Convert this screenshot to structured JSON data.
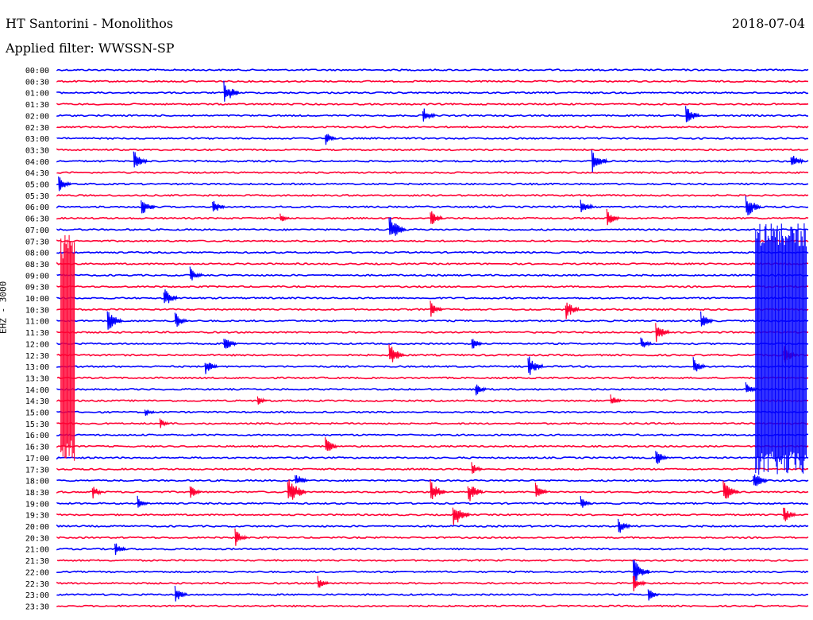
{
  "header": {
    "title": "HT Santorini - Monolithos",
    "date": "2018-07-04",
    "filter": "Applied filter: WWSSN-SP"
  },
  "chart_data": {
    "type": "line",
    "title": "HT Santorini - Monolithos",
    "ylabel": "EHZ - 3000",
    "colors": [
      "#0000ff",
      "#ff0033"
    ],
    "rows": [
      "00:00",
      "00:30",
      "01:00",
      "01:30",
      "02:00",
      "02:30",
      "03:00",
      "03:30",
      "04:00",
      "04:30",
      "05:00",
      "05:30",
      "06:00",
      "06:30",
      "07:00",
      "07:30",
      "08:00",
      "08:30",
      "09:00",
      "09:30",
      "10:00",
      "10:30",
      "11:00",
      "11:30",
      "12:00",
      "12:30",
      "13:00",
      "13:30",
      "14:00",
      "14:30",
      "15:00",
      "15:30",
      "16:00",
      "16:30",
      "17:00",
      "17:30",
      "18:00",
      "18:30",
      "19:00",
      "19:30",
      "20:00",
      "20:30",
      "21:00",
      "21:30",
      "22:00",
      "22:30",
      "23:00",
      "23:30"
    ],
    "bursts": [
      {
        "row": "07:30",
        "x_frac": 0.005,
        "to_row": "17:00",
        "color": "#ff0033"
      },
      {
        "row": "07:00",
        "x_frac": 0.93,
        "to_row": "17:30",
        "color": "#0000ff"
      }
    ],
    "events": [
      {
        "row": "01:00",
        "x": 0.225,
        "a": 14
      },
      {
        "row": "02:00",
        "x": 0.49,
        "a": 10
      },
      {
        "row": "02:00",
        "x": 0.84,
        "a": 12
      },
      {
        "row": "03:00",
        "x": 0.36,
        "a": 8
      },
      {
        "row": "04:00",
        "x": 0.105,
        "a": 12
      },
      {
        "row": "04:00",
        "x": 0.715,
        "a": 14
      },
      {
        "row": "04:00",
        "x": 0.98,
        "a": 10
      },
      {
        "row": "05:00",
        "x": 0.005,
        "a": 10
      },
      {
        "row": "06:00",
        "x": 0.115,
        "a": 12
      },
      {
        "row": "06:00",
        "x": 0.21,
        "a": 10
      },
      {
        "row": "06:00",
        "x": 0.7,
        "a": 10
      },
      {
        "row": "06:00",
        "x": 0.92,
        "a": 14
      },
      {
        "row": "06:30",
        "x": 0.3,
        "a": 6
      },
      {
        "row": "06:30",
        "x": 0.5,
        "a": 10
      },
      {
        "row": "06:30",
        "x": 0.735,
        "a": 10
      },
      {
        "row": "07:00",
        "x": 0.445,
        "a": 16
      },
      {
        "row": "09:00",
        "x": 0.18,
        "a": 10
      },
      {
        "row": "10:00",
        "x": 0.145,
        "a": 12
      },
      {
        "row": "10:30",
        "x": 0.5,
        "a": 10
      },
      {
        "row": "10:30",
        "x": 0.68,
        "a": 12
      },
      {
        "row": "11:00",
        "x": 0.07,
        "a": 14
      },
      {
        "row": "11:00",
        "x": 0.16,
        "a": 10
      },
      {
        "row": "11:00",
        "x": 0.86,
        "a": 10
      },
      {
        "row": "11:30",
        "x": 0.8,
        "a": 12
      },
      {
        "row": "12:00",
        "x": 0.225,
        "a": 10
      },
      {
        "row": "12:00",
        "x": 0.555,
        "a": 8
      },
      {
        "row": "12:00",
        "x": 0.78,
        "a": 8
      },
      {
        "row": "12:30",
        "x": 0.445,
        "a": 14
      },
      {
        "row": "12:30",
        "x": 0.97,
        "a": 12
      },
      {
        "row": "13:00",
        "x": 0.2,
        "a": 10
      },
      {
        "row": "13:00",
        "x": 0.63,
        "a": 14
      },
      {
        "row": "13:00",
        "x": 0.85,
        "a": 10
      },
      {
        "row": "14:00",
        "x": 0.56,
        "a": 8
      },
      {
        "row": "14:00",
        "x": 0.92,
        "a": 8
      },
      {
        "row": "14:30",
        "x": 0.27,
        "a": 6
      },
      {
        "row": "14:30",
        "x": 0.74,
        "a": 8
      },
      {
        "row": "15:00",
        "x": 0.12,
        "a": 6
      },
      {
        "row": "15:30",
        "x": 0.14,
        "a": 6
      },
      {
        "row": "16:30",
        "x": 0.36,
        "a": 10
      },
      {
        "row": "17:00",
        "x": 0.8,
        "a": 10
      },
      {
        "row": "17:30",
        "x": 0.555,
        "a": 8
      },
      {
        "row": "18:00",
        "x": 0.32,
        "a": 10
      },
      {
        "row": "18:00",
        "x": 0.93,
        "a": 12
      },
      {
        "row": "18:30",
        "x": 0.05,
        "a": 8
      },
      {
        "row": "18:30",
        "x": 0.18,
        "a": 8
      },
      {
        "row": "18:30",
        "x": 0.31,
        "a": 18
      },
      {
        "row": "18:30",
        "x": 0.5,
        "a": 14
      },
      {
        "row": "18:30",
        "x": 0.55,
        "a": 14
      },
      {
        "row": "18:30",
        "x": 0.64,
        "a": 10
      },
      {
        "row": "18:30",
        "x": 0.89,
        "a": 14
      },
      {
        "row": "19:00",
        "x": 0.11,
        "a": 8
      },
      {
        "row": "19:00",
        "x": 0.7,
        "a": 8
      },
      {
        "row": "19:30",
        "x": 0.53,
        "a": 16
      },
      {
        "row": "19:30",
        "x": 0.97,
        "a": 10
      },
      {
        "row": "20:00",
        "x": 0.75,
        "a": 10
      },
      {
        "row": "20:30",
        "x": 0.24,
        "a": 10
      },
      {
        "row": "21:00",
        "x": 0.08,
        "a": 8
      },
      {
        "row": "22:00",
        "x": 0.77,
        "a": 16
      },
      {
        "row": "22:30",
        "x": 0.35,
        "a": 8
      },
      {
        "row": "22:30",
        "x": 0.77,
        "a": 10
      },
      {
        "row": "23:00",
        "x": 0.16,
        "a": 10
      },
      {
        "row": "23:00",
        "x": 0.79,
        "a": 8
      }
    ]
  }
}
